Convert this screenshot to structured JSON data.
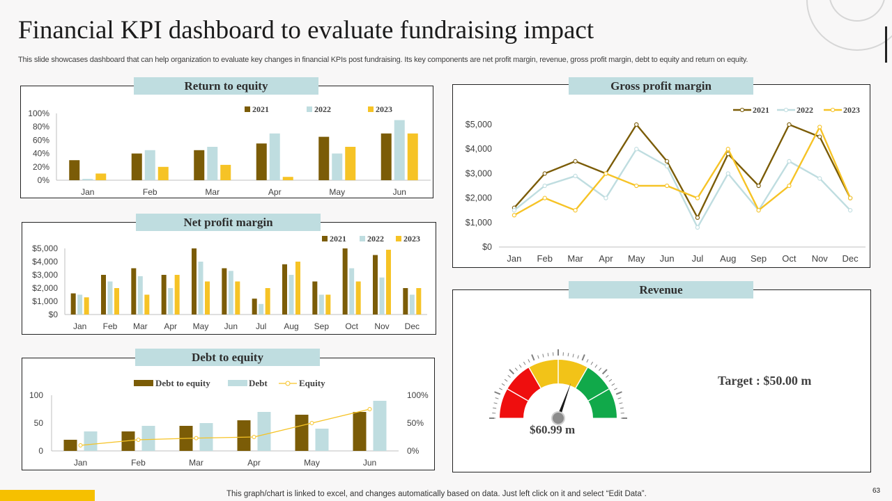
{
  "header": {
    "title": "Financial KPI dashboard to evaluate fundraising impact",
    "subtitle": "This slide showcases dashboard that can help organization to evaluate key changes in financial KPIs post fundraising. Its key components are net profit margin, revenue, gross profit margin, debt to equity and return on equity."
  },
  "footer": {
    "note": "This graph/chart is linked to excel,  and changes automatically based on data. Just left click on it and select “Edit Data”.",
    "page_number": "63"
  },
  "colors": {
    "s2021": "#7b5c07",
    "s2022": "#bfdde0",
    "s2023": "#f6c326",
    "badge": "#bfdde0",
    "accent": "#f6c000"
  },
  "chart_data": [
    {
      "id": "roe",
      "type": "bar",
      "title": "Return to equity",
      "categories": [
        "Jan",
        "Feb",
        "Mar",
        "Apr",
        "May",
        "Jun"
      ],
      "series": [
        {
          "name": "2021",
          "values": [
            30,
            40,
            45,
            55,
            65,
            70
          ]
        },
        {
          "name": "2022",
          "values": [
            2,
            45,
            50,
            70,
            40,
            90
          ]
        },
        {
          "name": "2023",
          "values": [
            10,
            20,
            23,
            5,
            50,
            70
          ]
        }
      ],
      "ylim": [
        0,
        100
      ],
      "yticks": [
        "0%",
        "20%",
        "40%",
        "60%",
        "80%",
        "100%"
      ],
      "legend": "top-right"
    },
    {
      "id": "npm",
      "type": "bar",
      "title": "Net profit margin",
      "categories": [
        "Jan",
        "Feb",
        "Mar",
        "Apr",
        "May",
        "Jun",
        "Jul",
        "Aug",
        "Sep",
        "Oct",
        "Nov",
        "Dec"
      ],
      "series": [
        {
          "name": "2021",
          "values": [
            1600,
            3000,
            3500,
            3000,
            5000,
            3500,
            1200,
            3800,
            2500,
            5000,
            4500,
            2000
          ]
        },
        {
          "name": "2022",
          "values": [
            1500,
            2500,
            2900,
            2000,
            4000,
            3300,
            800,
            3000,
            1500,
            3500,
            2800,
            1500
          ]
        },
        {
          "name": "2023",
          "values": [
            1300,
            2000,
            1500,
            3000,
            2500,
            2500,
            2000,
            4000,
            1500,
            2500,
            4900,
            2000
          ]
        }
      ],
      "ylim": [
        0,
        5000
      ],
      "yticks": [
        "$0",
        "$1,000",
        "$2,000",
        "$3,000",
        "$4,000",
        "$5,000"
      ],
      "legend": "top-right"
    },
    {
      "id": "dte",
      "type": "bar+line",
      "title": "Debt to equity",
      "categories": [
        "Jan",
        "Feb",
        "Mar",
        "Apr",
        "May",
        "Jun"
      ],
      "series": [
        {
          "name": "Debt to equity",
          "kind": "bar",
          "values": [
            20,
            35,
            45,
            55,
            65,
            70
          ]
        },
        {
          "name": "Debt",
          "kind": "bar",
          "values": [
            35,
            45,
            50,
            70,
            40,
            90
          ]
        },
        {
          "name": "Equity",
          "kind": "line",
          "axis": "right",
          "values": [
            10,
            20,
            23,
            25,
            50,
            75
          ]
        }
      ],
      "ylim": [
        0,
        100
      ],
      "yticks": [
        "0",
        "50",
        "100"
      ],
      "y2lim": [
        0,
        100
      ],
      "y2ticks": [
        "0%",
        "50%",
        "100%"
      ],
      "legend": "top"
    },
    {
      "id": "gpm",
      "type": "line",
      "title": "Gross profit margin",
      "categories": [
        "Jan",
        "Feb",
        "Mar",
        "Apr",
        "May",
        "Jun",
        "Jul",
        "Aug",
        "Sep",
        "Oct",
        "Nov",
        "Dec"
      ],
      "series": [
        {
          "name": "2021",
          "values": [
            1600,
            3000,
            3500,
            3000,
            5000,
            3500,
            1200,
            3800,
            2500,
            5000,
            4500,
            2000
          ]
        },
        {
          "name": "2022",
          "values": [
            1500,
            2500,
            2900,
            2000,
            4000,
            3300,
            800,
            3000,
            1500,
            3500,
            2800,
            1500
          ]
        },
        {
          "name": "2023",
          "values": [
            1300,
            2000,
            1500,
            3000,
            2500,
            2500,
            2000,
            4000,
            1500,
            2500,
            4900,
            2000
          ]
        }
      ],
      "ylim": [
        0,
        5000
      ],
      "yticks": [
        "$0",
        "$1,000",
        "$2,000",
        "$3,000",
        "$4,000",
        "$5,000"
      ],
      "legend": "top-right"
    },
    {
      "id": "revenue",
      "type": "gauge",
      "title": "Revenue",
      "value": 60.99,
      "value_label": "$60.99 m",
      "max": 100,
      "target_label": "Target : $50.00 m",
      "zones": [
        {
          "color": "#ef0e0e",
          "from": 0,
          "to": 33.3
        },
        {
          "color": "#f2c318",
          "from": 33.3,
          "to": 66.6
        },
        {
          "color": "#11a94a",
          "from": 66.6,
          "to": 100
        }
      ]
    }
  ]
}
